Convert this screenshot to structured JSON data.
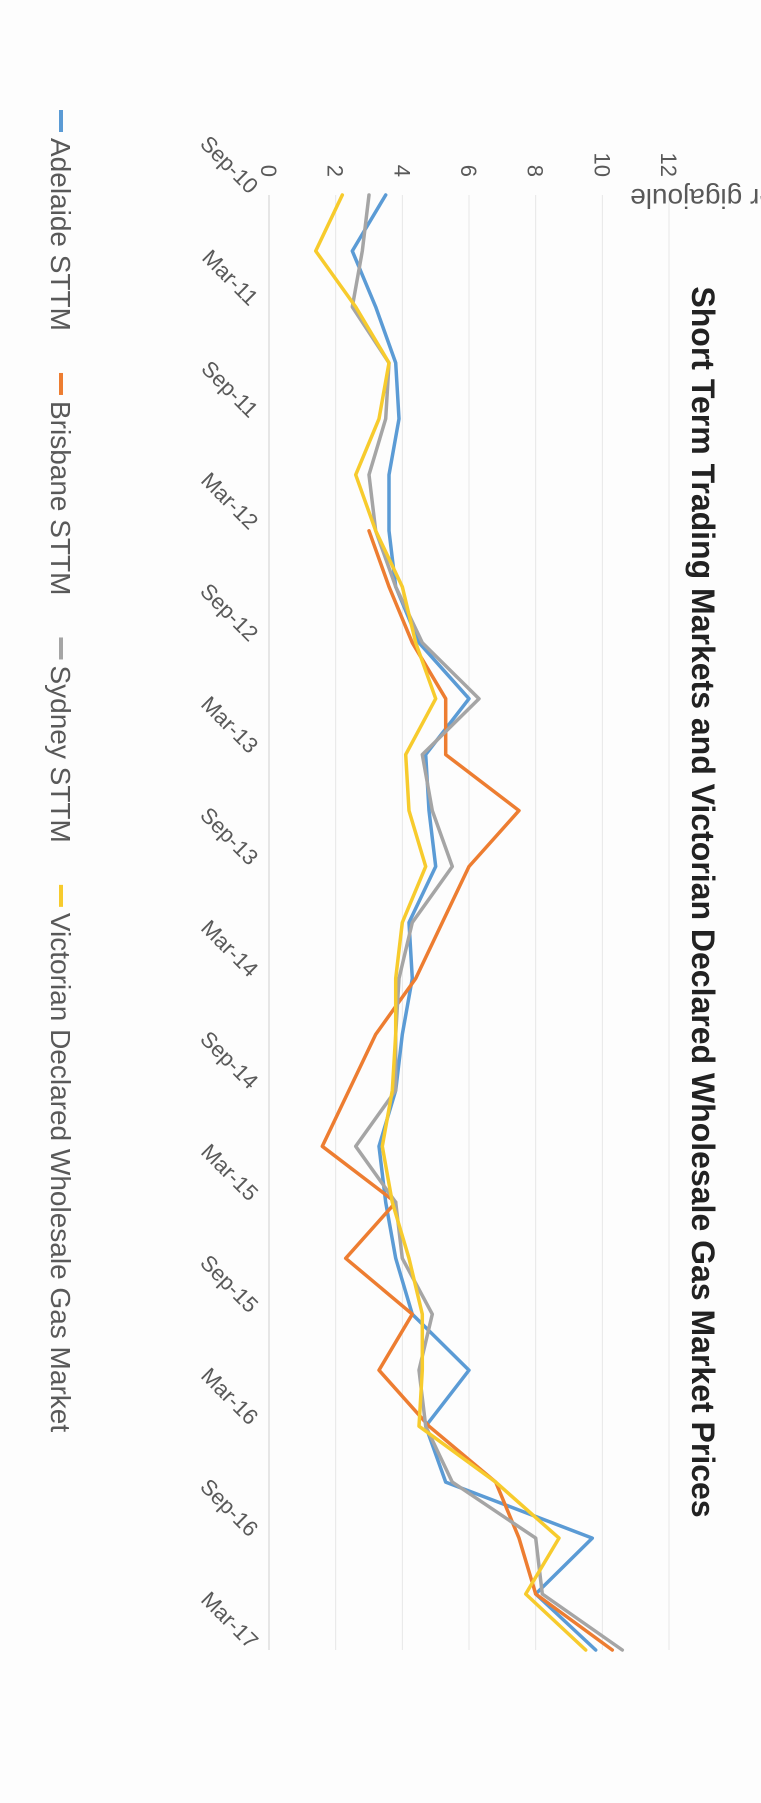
{
  "chart_data": {
    "type": "line",
    "title": "Short Term Trading Markets and Victorian Declared Wholesale Gas Market Prices",
    "xlabel": "",
    "ylabel": "$ per gigajoule",
    "ylim": [
      0,
      12
    ],
    "yticks": [
      0,
      2,
      4,
      6,
      8,
      10,
      12
    ],
    "grid": true,
    "legend_position": "bottom",
    "orientation": "rotated-90-clockwise",
    "categories": [
      "Sep-10",
      "Dec-10",
      "Mar-11",
      "Jun-11",
      "Sep-11",
      "Dec-11",
      "Mar-12",
      "Jun-12",
      "Sep-12",
      "Dec-12",
      "Mar-13",
      "Jun-13",
      "Sep-13",
      "Dec-13",
      "Mar-14",
      "Jun-14",
      "Sep-14",
      "Dec-14",
      "Mar-15",
      "Jun-15",
      "Sep-15",
      "Dec-15",
      "Mar-16",
      "Jun-16",
      "Sep-16",
      "Dec-16",
      "Mar-17"
    ],
    "xtick_labels": [
      "Sep-10",
      "Mar-11",
      "Sep-11",
      "Mar-12",
      "Sep-12",
      "Mar-13",
      "Sep-13",
      "Mar-14",
      "Sep-14",
      "Mar-15",
      "Sep-15",
      "Mar-16",
      "Sep-16",
      "Mar-17"
    ],
    "series": [
      {
        "name": "Adelaide STTM",
        "color": "#5b9bd5",
        "values": [
          3.5,
          2.5,
          3.2,
          3.8,
          3.9,
          3.6,
          3.6,
          3.8,
          4.5,
          6.0,
          4.7,
          4.8,
          5.0,
          4.2,
          4.3,
          4.0,
          3.8,
          3.3,
          3.5,
          3.8,
          4.3,
          6.0,
          4.7,
          5.3,
          9.7,
          8.0,
          9.8
        ]
      },
      {
        "name": "Brisbane STTM",
        "color": "#ed7d31",
        "values": [
          null,
          null,
          null,
          null,
          null,
          null,
          3.0,
          3.6,
          4.3,
          5.3,
          5.3,
          7.5,
          6.0,
          5.2,
          4.4,
          3.2,
          2.4,
          1.6,
          3.8,
          2.3,
          4.3,
          3.3,
          4.8,
          6.8,
          7.5,
          8.0,
          10.3
        ]
      },
      {
        "name": "Sydney STTM",
        "color": "#a5a5a5",
        "values": [
          3.0,
          2.8,
          2.5,
          3.6,
          3.5,
          3.0,
          3.2,
          3.8,
          4.6,
          6.3,
          4.6,
          4.9,
          5.5,
          4.3,
          3.9,
          3.8,
          3.8,
          2.6,
          3.8,
          4.0,
          4.9,
          4.5,
          4.7,
          5.5,
          8.0,
          8.2,
          10.6
        ]
      },
      {
        "name": "Victorian Declared Wholesale Gas Market",
        "color": "#f7cb2d",
        "values": [
          2.2,
          1.4,
          2.6,
          3.6,
          3.3,
          2.6,
          3.2,
          4.0,
          4.4,
          5.0,
          4.1,
          4.2,
          4.7,
          4.0,
          3.8,
          3.8,
          3.7,
          3.4,
          3.7,
          4.2,
          4.6,
          4.6,
          4.5,
          6.8,
          8.7,
          7.7,
          9.5
        ]
      }
    ]
  }
}
